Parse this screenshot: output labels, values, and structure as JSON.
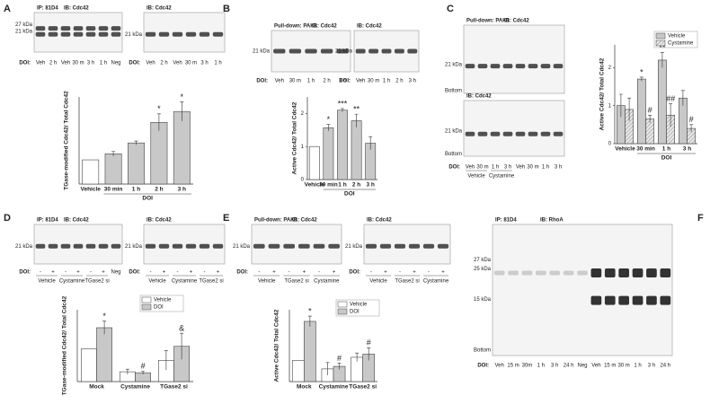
{
  "panel_letters": [
    "A",
    "B",
    "C",
    "D",
    "E",
    "F"
  ],
  "blots": [
    {
      "header": [
        "IP: 81D4",
        "IB: Cdc42"
      ],
      "markers": [
        "27 kDa",
        "21 kDa"
      ],
      "lane_prefix": "DOI:",
      "lanes": [
        "Veh",
        "2 h",
        "Veh",
        "30 m",
        "3 h",
        "1 h",
        "Neg"
      ]
    },
    {
      "header": [
        "IB: Cdc42"
      ],
      "markers": [
        "21 kDa"
      ],
      "lane_prefix": "DOI:",
      "lanes": [
        "Veh",
        "2 h",
        "Veh",
        "30 m",
        "3 h",
        "1 h"
      ]
    },
    {
      "header": [
        "Pull-down: PAK1",
        "IB: Cdc42"
      ],
      "markers": [
        "21 kDa"
      ],
      "lane_prefix": "DOI:",
      "lanes": [
        "Veh",
        "30 m",
        "1 h",
        "2 h",
        "3 h"
      ]
    },
    {
      "header": [
        "IB: Cdc42"
      ],
      "markers": [
        "21 kDa"
      ],
      "lane_prefix": "DOI:",
      "lanes": [
        "Veh",
        "30 m",
        "1 h",
        "2 h",
        "3 h"
      ]
    },
    {
      "header": [
        "Pull-down: PAK1",
        "IB: Cdc42"
      ],
      "markers": [
        "21 kDa",
        "Bottom"
      ]
    },
    {
      "header": [
        "IB: Cdc42"
      ],
      "markers": [
        "21 kDa",
        "Bottom"
      ],
      "lane_prefix": "DOI:",
      "lanes": [
        "Veh",
        "30 m",
        "1 h",
        "3 h",
        "Veh",
        "30 m",
        "1 h",
        "3 h"
      ],
      "groups": [
        "Vehicle",
        "Cystamine"
      ]
    },
    {
      "header": [
        "IP: 81D4",
        "IB: Cdc42"
      ],
      "markers": [
        "21 kDa"
      ],
      "lane_prefix": "DOI:",
      "lanes": [
        "-",
        "+",
        "-",
        "+",
        "-",
        "+",
        "Neg"
      ],
      "groups": [
        "Vehicle",
        "Cystamine",
        "TGase2 si"
      ]
    },
    {
      "header": [
        "IB: Cdc42"
      ],
      "markers": [
        "21 kDa"
      ],
      "lane_prefix": "DOI:",
      "lanes": [
        "-",
        "+",
        "-",
        "+",
        "-",
        "+"
      ],
      "groups": [
        "Vehicle",
        "Cystamine",
        "TGase2 si"
      ]
    },
    {
      "header": [
        "Pull-down: PAK1",
        "IB: Cdc42"
      ],
      "markers": [
        "21 kDa"
      ],
      "lane_prefix": "DOI:",
      "lanes": [
        "-",
        "+",
        "-",
        "+",
        "-",
        "+"
      ],
      "groups": [
        "Vehicle",
        "TGase2 si",
        "Cystamine"
      ]
    },
    {
      "header": [
        "IB: Cdc42"
      ],
      "markers": [
        "21 kDa"
      ],
      "lane_prefix": "DOI:",
      "lanes": [
        "-",
        "+",
        "-",
        "+",
        "-",
        "+"
      ],
      "groups": [
        "Vehicle",
        "TGase2 si",
        "Cystamine"
      ]
    },
    {
      "header": [
        "IP: 81D4",
        "IB: RhoA"
      ],
      "markers": [
        "27 kDa",
        "25 kDa",
        "15 kDa",
        "Bottom"
      ],
      "lane_prefix": "DOI:",
      "lanes": [
        "Veh",
        "15 m",
        "30m",
        "1 h",
        "3 h",
        "24 h",
        "Neg",
        "Veh",
        "15 m",
        "30 m",
        "1 h",
        "3 h",
        "24 h"
      ]
    }
  ],
  "chart_data": [
    {
      "type": "bar",
      "y_label": "TGase-modified Cdc42/ Total Cdc42",
      "categories": [
        "Vehicle",
        "30 min",
        "1 h",
        "2 h",
        "3 h"
      ],
      "group_label": "DOI",
      "values": [
        1.0,
        1.25,
        1.7,
        2.55,
        3.0
      ],
      "errors": [
        null,
        0.1,
        0.08,
        0.35,
        0.4
      ],
      "colors": [
        "#ffffff",
        "#c8c8c8",
        "#c8c8c8",
        "#c8c8c8",
        "#c8c8c8"
      ],
      "annotations": [
        null,
        null,
        null,
        "*",
        "*"
      ],
      "ylim": [
        0,
        3.6
      ]
    },
    {
      "type": "bar",
      "y_label": "Active Cdc42/ Total Cdc42",
      "categories": [
        "Vehicle",
        "30 min",
        "1 h",
        "2 h",
        "3 h"
      ],
      "group_label": "DOI",
      "values": [
        1.0,
        1.57,
        2.1,
        1.78,
        1.1
      ],
      "errors": [
        null,
        0.1,
        0.05,
        0.2,
        0.2
      ],
      "colors": [
        "#ffffff",
        "#c8c8c8",
        "#c8c8c8",
        "#c8c8c8",
        "#c8c8c8"
      ],
      "annotations": [
        null,
        "*",
        "***",
        "**",
        null
      ],
      "ylim": [
        0,
        2.5
      ],
      "yticks": [
        0,
        1,
        2
      ]
    },
    {
      "type": "grouped_bar",
      "y_label": "Active Cdc42/ Total Cdc42",
      "categories": [
        "Vehicle",
        "30 min",
        "1 h",
        "3 h"
      ],
      "group_label": "DOI",
      "series": [
        {
          "name": "Vehicle",
          "color": "#c8c8c8",
          "values": [
            1.0,
            1.7,
            2.2,
            1.2
          ],
          "errors": [
            0.3,
            0.05,
            0.2,
            0.2
          ],
          "annotations": [
            null,
            "*",
            "**",
            null
          ]
        },
        {
          "name": "Cystamine",
          "color": "#e4e4e4",
          "hatch": true,
          "values": [
            0.9,
            0.65,
            0.75,
            0.4
          ],
          "errors": [
            0.3,
            0.1,
            0.3,
            0.1
          ],
          "annotations": [
            null,
            "#",
            "##",
            "#"
          ]
        }
      ],
      "ylim": [
        0,
        2.6
      ],
      "yticks": [
        0,
        1,
        2
      ],
      "legend": "top-right"
    },
    {
      "type": "grouped_bar",
      "y_label": "TGase-modified Cdc42/ Total Cdc42",
      "categories": [
        "Mock",
        "Cystamine",
        "TGase2 si"
      ],
      "series": [
        {
          "name": "Vehicle",
          "color": "#ffffff",
          "values": [
            1.0,
            0.3,
            0.65
          ],
          "errors": [
            null,
            0.08,
            0.3
          ]
        },
        {
          "name": "DOI",
          "color": "#c8c8c8",
          "values": [
            1.65,
            0.27,
            1.08
          ],
          "errors": [
            0.2,
            0.05,
            0.4
          ],
          "annotations": [
            "*",
            "#",
            "&"
          ]
        }
      ],
      "ylim": [
        0,
        2.2
      ],
      "legend": "top-right"
    },
    {
      "type": "grouped_bar",
      "y_label": "Active Cdc42/ Total Cdc42",
      "categories": [
        "Mock",
        "Cystamine",
        "TGase2 si"
      ],
      "series": [
        {
          "name": "Vehicle",
          "color": "#ffffff",
          "values": [
            1.0,
            0.6,
            1.15
          ],
          "errors": [
            null,
            0.3,
            0.2
          ]
        },
        {
          "name": "DOI",
          "color": "#c8c8c8",
          "values": [
            2.85,
            0.72,
            1.3
          ],
          "errors": [
            0.25,
            0.15,
            0.3
          ],
          "annotations": [
            "*",
            "#",
            "#"
          ]
        }
      ],
      "ylim": [
        0,
        3.4
      ],
      "legend": "top-right"
    }
  ]
}
